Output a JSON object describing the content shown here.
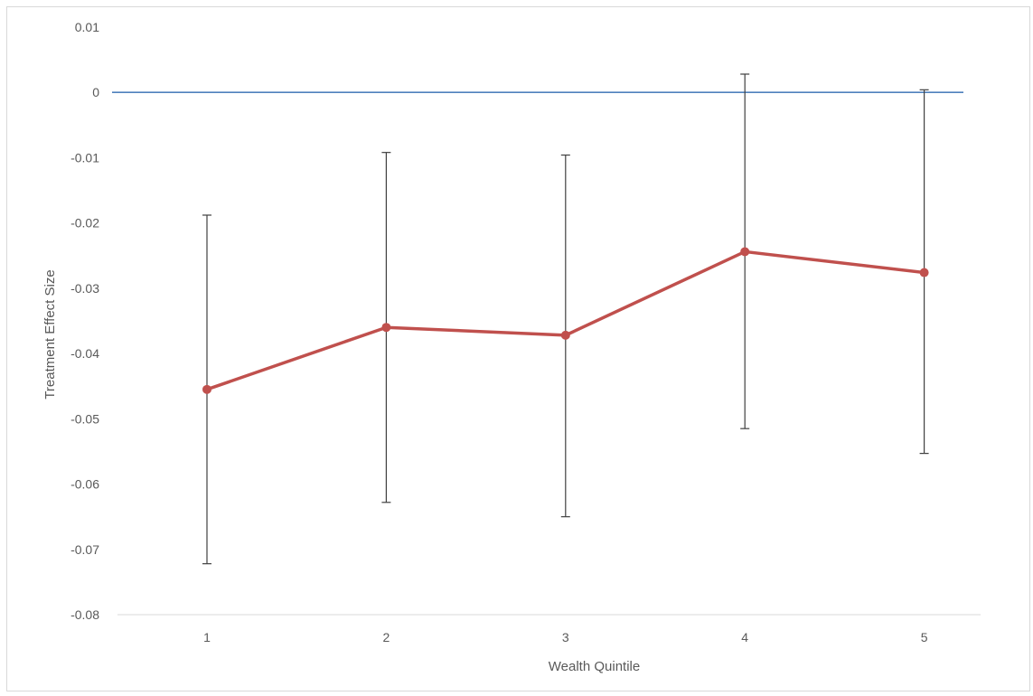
{
  "chart_data": {
    "type": "line",
    "title": "",
    "xlabel": "Wealth Quintile",
    "ylabel": "Treatment  Effect Size",
    "categories": [
      "1",
      "2",
      "3",
      "4",
      "5"
    ],
    "series": [
      {
        "values": [
          -0.0455,
          -0.036,
          -0.0372,
          -0.0244,
          -0.0276
        ],
        "error_upper": [
          -0.0188,
          -0.0092,
          -0.0096,
          0.0028,
          0.0004
        ],
        "error_lower": [
          -0.0722,
          -0.0628,
          -0.065,
          -0.0515,
          -0.0553
        ],
        "color": "#c0504d"
      }
    ],
    "reference_line": {
      "y": 0,
      "color": "#4f81bd"
    },
    "ylim": [
      -0.08,
      0.01
    ],
    "yticks": [
      "0.01",
      "0",
      "-0.01",
      "-0.02",
      "-0.03",
      "-0.04",
      "-0.05",
      "-0.06",
      "-0.07",
      "-0.08"
    ],
    "grid": false,
    "legend": "none",
    "error_bar_color": "#404040",
    "axis_line_color": "#d9d9d9"
  }
}
